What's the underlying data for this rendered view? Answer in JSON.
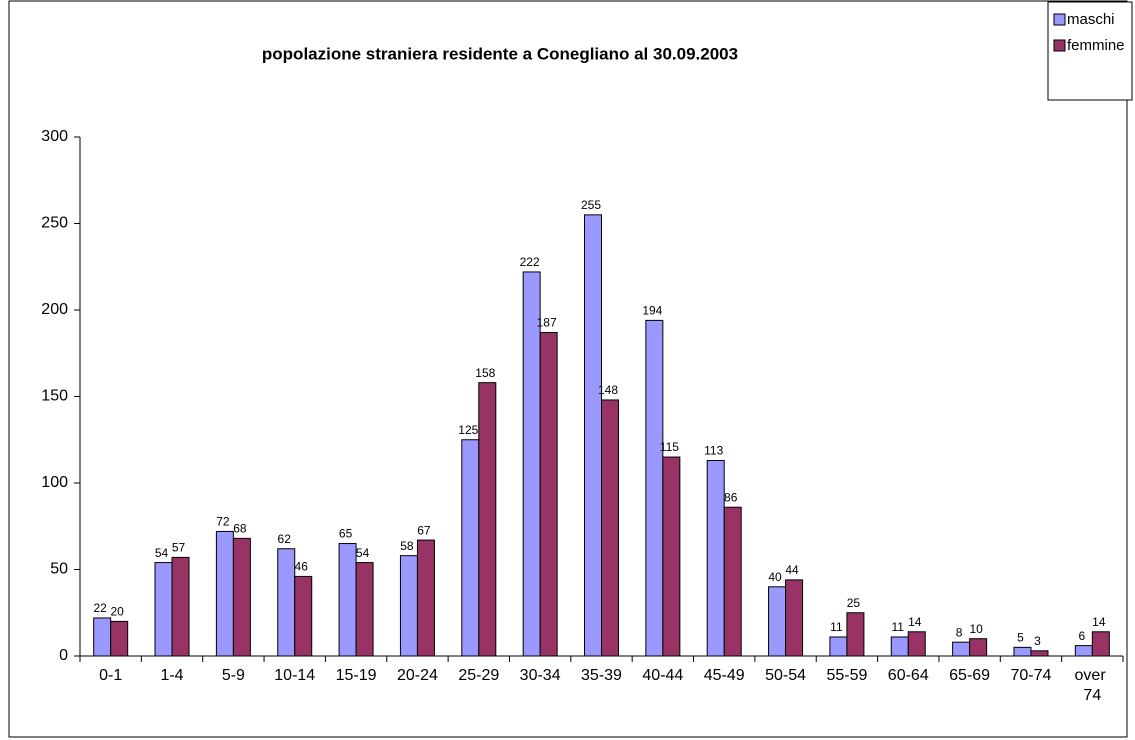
{
  "chart_data": {
    "type": "bar",
    "title": "popolazione straniera residente a Conegliano al 30.09.2003",
    "categories": [
      "0-1",
      "1-4",
      "5-9",
      "10-14",
      "15-19",
      "20-24",
      "25-29",
      "30-34",
      "35-39",
      "40-44",
      "45-49",
      "50-54",
      "55-59",
      "60-64",
      "65-69",
      "70-74",
      "over 74"
    ],
    "series": [
      {
        "name": "maschi",
        "color": "#9999ff",
        "values": [
          22,
          54,
          72,
          62,
          65,
          58,
          125,
          222,
          255,
          194,
          113,
          40,
          11,
          11,
          8,
          5,
          6
        ]
      },
      {
        "name": "femmine",
        "color": "#993366",
        "values": [
          20,
          57,
          68,
          46,
          54,
          67,
          158,
          187,
          148,
          115,
          86,
          44,
          25,
          14,
          10,
          3,
          14
        ]
      }
    ],
    "ylim": [
      0,
      300
    ],
    "yticks": [
      0,
      50,
      100,
      150,
      200,
      250,
      300
    ],
    "legend": "top-right",
    "grid": false
  }
}
